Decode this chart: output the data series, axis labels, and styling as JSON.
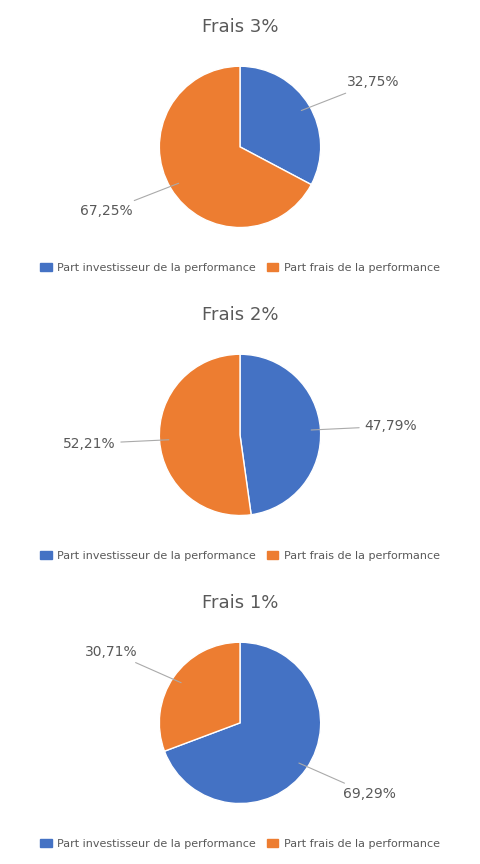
{
  "charts": [
    {
      "title": "Frais 3%",
      "values": [
        32.75,
        67.25
      ],
      "labels": [
        "32,75%",
        "67,25%"
      ],
      "colors": [
        "#4472C4",
        "#ED7D31"
      ],
      "startangle": 90
    },
    {
      "title": "Frais 2%",
      "values": [
        47.79,
        52.21
      ],
      "labels": [
        "47,79%",
        "52,21%"
      ],
      "colors": [
        "#4472C4",
        "#ED7D31"
      ],
      "startangle": 90
    },
    {
      "title": "Frais 1%",
      "values": [
        69.29,
        30.71
      ],
      "labels": [
        "69,29%",
        "30,71%"
      ],
      "colors": [
        "#4472C4",
        "#ED7D31"
      ],
      "startangle": 90
    }
  ],
  "legend_labels": [
    "Part investisseur de la performance",
    "Part frais de la performance"
  ],
  "legend_colors": [
    "#4472C4",
    "#ED7D31"
  ],
  "title_color": "#595959",
  "label_color": "#595959",
  "background_color": "#FFFFFF",
  "title_fontsize": 13,
  "label_fontsize": 10,
  "legend_fontsize": 8
}
